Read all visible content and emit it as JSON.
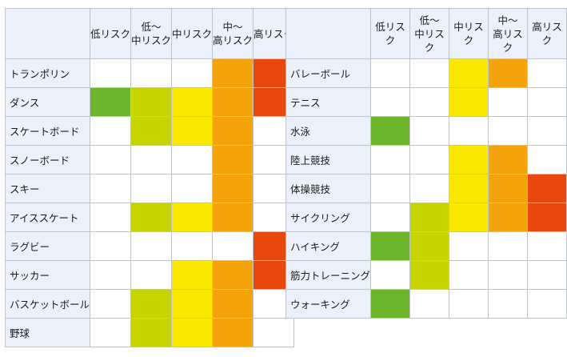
{
  "colors": {
    "header_bg": "#eaf1fa",
    "border": "#bfc4ca",
    "none": "#ffffff",
    "low": "#6cb52c",
    "low_mid": "#c6d500",
    "mid": "#fbe800",
    "mid_high": "#f4a30a",
    "high": "#e8470d"
  },
  "headers": [
    "低リスク",
    "低～\n中リスク",
    "中リスク",
    "中～\n高リスク",
    "高リスク"
  ],
  "left_table": {
    "rows": [
      {
        "sport": "トランポリン",
        "levels": [
          "none",
          "none",
          "none",
          "mid_high",
          "high"
        ]
      },
      {
        "sport": "ダンス",
        "levels": [
          "low",
          "low_mid",
          "mid",
          "mid_high",
          "high"
        ]
      },
      {
        "sport": "スケートボード",
        "levels": [
          "none",
          "low_mid",
          "mid",
          "mid_high",
          "none"
        ]
      },
      {
        "sport": "スノーボード",
        "levels": [
          "none",
          "none",
          "none",
          "mid_high",
          "none"
        ]
      },
      {
        "sport": "スキー",
        "levels": [
          "none",
          "none",
          "none",
          "mid_high",
          "none"
        ]
      },
      {
        "sport": "アイススケート",
        "levels": [
          "none",
          "low_mid",
          "mid",
          "mid_high",
          "none"
        ]
      },
      {
        "sport": "ラグビー",
        "levels": [
          "none",
          "none",
          "none",
          "none",
          "high"
        ]
      },
      {
        "sport": "サッカー",
        "levels": [
          "none",
          "none",
          "mid",
          "mid_high",
          "high"
        ]
      },
      {
        "sport": "バスケットボール",
        "levels": [
          "none",
          "low_mid",
          "mid",
          "mid_high",
          "none"
        ]
      },
      {
        "sport": "野球",
        "levels": [
          "none",
          "low_mid",
          "mid",
          "mid_high",
          "none"
        ]
      }
    ]
  },
  "right_table": {
    "rows": [
      {
        "sport": "バレーボール",
        "levels": [
          "none",
          "none",
          "mid",
          "mid_high",
          "none"
        ]
      },
      {
        "sport": "テニス",
        "levels": [
          "none",
          "none",
          "mid",
          "none",
          "none"
        ]
      },
      {
        "sport": "水泳",
        "levels": [
          "low",
          "none",
          "none",
          "none",
          "none"
        ]
      },
      {
        "sport": "陸上競技",
        "levels": [
          "none",
          "none",
          "mid",
          "mid_high",
          "none"
        ]
      },
      {
        "sport": "体操競技",
        "levels": [
          "none",
          "none",
          "mid",
          "mid_high",
          "high"
        ]
      },
      {
        "sport": "サイクリング",
        "levels": [
          "none",
          "low_mid",
          "mid",
          "mid_high",
          "high"
        ]
      },
      {
        "sport": "ハイキング",
        "levels": [
          "low",
          "low_mid",
          "none",
          "none",
          "none"
        ]
      },
      {
        "sport": "筋力トレーニング",
        "levels": [
          "none",
          "low_mid",
          "none",
          "none",
          "none"
        ]
      },
      {
        "sport": "ウォーキング",
        "levels": [
          "low",
          "none",
          "none",
          "none",
          "none"
        ]
      }
    ]
  }
}
